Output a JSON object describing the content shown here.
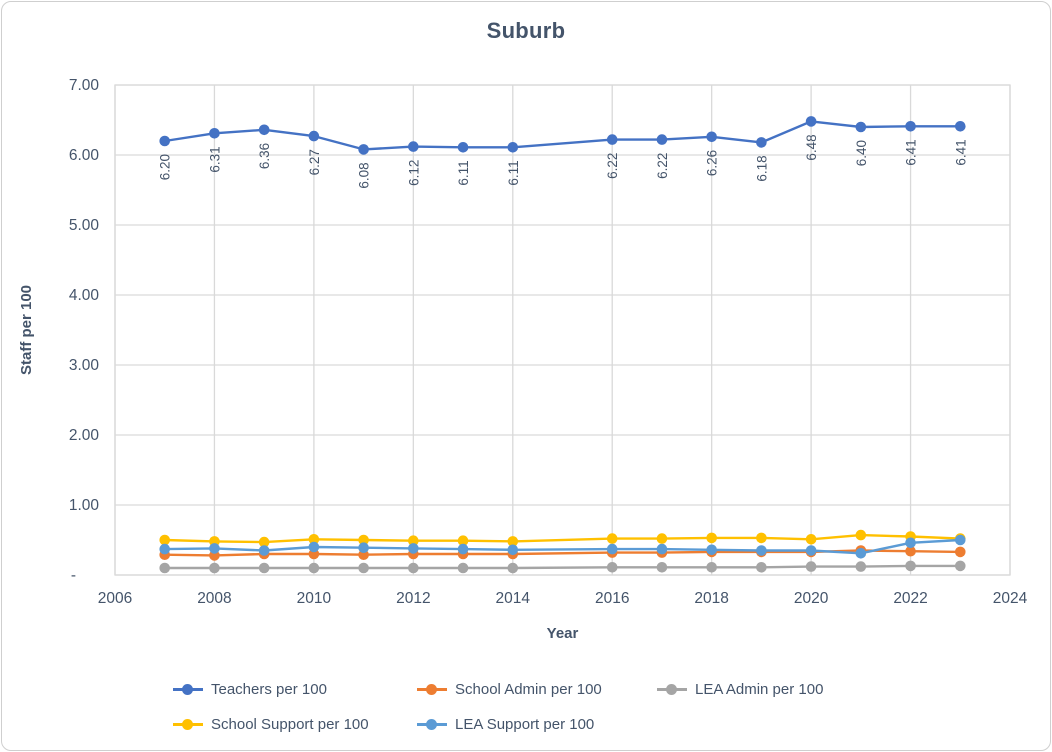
{
  "chart": {
    "title": "Suburb",
    "background": "#FFFFFF",
    "frame_border_color": "#CFCFCF",
    "gridline_color": "#D9D9D9",
    "text_color": "#44546A",
    "data_label_color": "#44546A"
  },
  "chart_data": {
    "type": "line",
    "title": "Suburb",
    "xlabel": "Year",
    "ylabel": "Staff per 100",
    "grid": true,
    "legend_position": "bottom",
    "x_axis": {
      "min": 2006,
      "max": 2024,
      "tick_step": 2,
      "tick_labels": [
        "2006",
        "2008",
        "2010",
        "2012",
        "2014",
        "2016",
        "2018",
        "2020",
        "2022",
        "2024"
      ]
    },
    "y_axis": {
      "min": 0,
      "max": 7,
      "tick_step": 1,
      "tick_labels": [
        "-",
        "1.00",
        "2.00",
        "3.00",
        "4.00",
        "5.00",
        "6.00",
        "7.00"
      ]
    },
    "x": [
      2007,
      2008,
      2009,
      2010,
      2011,
      2012,
      2013,
      2014,
      2016,
      2017,
      2018,
      2019,
      2020,
      2021,
      2022,
      2023
    ],
    "note": "No data point for 2015; lines connect 2014 directly to 2016.",
    "series": [
      {
        "name": "Teachers per 100",
        "color": "#4472C4",
        "data_labels": true,
        "label_format": "2dp",
        "values": [
          6.2,
          6.31,
          6.36,
          6.27,
          6.08,
          6.12,
          6.11,
          6.11,
          6.22,
          6.22,
          6.26,
          6.18,
          6.48,
          6.4,
          6.41,
          6.41
        ]
      },
      {
        "name": "School Admin per 100",
        "color": "#ED7D31",
        "data_labels": false,
        "values": [
          0.29,
          0.28,
          0.3,
          0.3,
          0.29,
          0.3,
          0.3,
          0.3,
          0.32,
          0.32,
          0.33,
          0.33,
          0.33,
          0.35,
          0.34,
          0.33
        ]
      },
      {
        "name": "LEA Admin per 100",
        "color": "#A5A5A5",
        "data_labels": false,
        "values": [
          0.1,
          0.1,
          0.1,
          0.1,
          0.1,
          0.1,
          0.1,
          0.1,
          0.11,
          0.11,
          0.11,
          0.11,
          0.12,
          0.12,
          0.13,
          0.13
        ]
      },
      {
        "name": "School Support per 100",
        "color": "#FFC000",
        "data_labels": false,
        "values": [
          0.5,
          0.48,
          0.47,
          0.51,
          0.5,
          0.49,
          0.49,
          0.48,
          0.52,
          0.52,
          0.53,
          0.53,
          0.51,
          0.57,
          0.55,
          0.52
        ]
      },
      {
        "name": "LEA Support per 100",
        "color": "#5B9BD5",
        "data_labels": false,
        "values": [
          0.37,
          0.38,
          0.35,
          0.4,
          0.39,
          0.38,
          0.37,
          0.36,
          0.37,
          0.37,
          0.36,
          0.35,
          0.35,
          0.31,
          0.46,
          0.5
        ]
      }
    ],
    "legend": {
      "rows": [
        [
          "Teachers per 100",
          "School Admin per 100",
          "LEA Admin per 100"
        ],
        [
          "School Support per 100",
          "LEA Support per 100"
        ]
      ]
    }
  }
}
